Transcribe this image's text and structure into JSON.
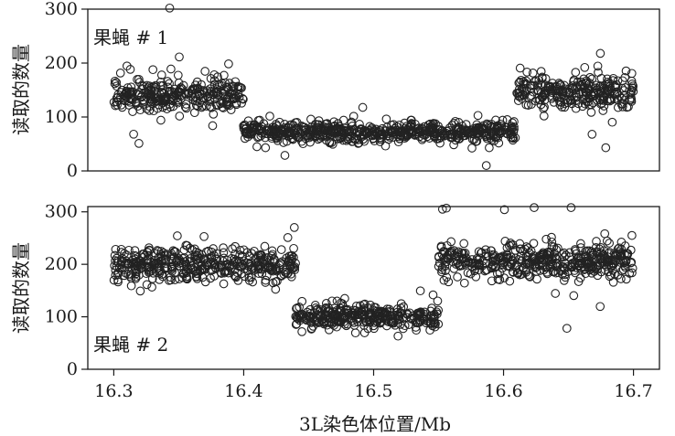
{
  "chart_data": [
    {
      "type": "scatter",
      "panel_label": "果蝇 # 1",
      "ylabel": "读取的数量",
      "ylim": [
        0,
        300
      ],
      "yticks": [
        0,
        100,
        200,
        300
      ],
      "xlim": [
        16.28,
        16.72
      ],
      "segments": [
        {
          "x_start": 16.3,
          "x_end": 16.4,
          "mean": 140,
          "spread": 28
        },
        {
          "x_start": 16.4,
          "x_end": 16.61,
          "mean": 72,
          "spread": 16
        },
        {
          "x_start": 16.61,
          "x_end": 16.7,
          "mean": 145,
          "spread": 28
        }
      ],
      "outliers": [
        {
          "x": 16.343,
          "y": 302
        }
      ],
      "series_color": "#222222"
    },
    {
      "type": "scatter",
      "panel_label": "果蝇 # 2",
      "ylabel": "读取的数量",
      "ylim": [
        0,
        310
      ],
      "yticks": [
        0,
        100,
        200,
        300
      ],
      "xlim": [
        16.28,
        16.72
      ],
      "segments": [
        {
          "x_start": 16.3,
          "x_end": 16.44,
          "mean": 200,
          "spread": 28
        },
        {
          "x_start": 16.44,
          "x_end": 16.55,
          "mean": 100,
          "spread": 20
        },
        {
          "x_start": 16.55,
          "x_end": 16.7,
          "mean": 205,
          "spread": 28
        }
      ],
      "outliers": [
        {
          "x": 16.553,
          "y": 305
        },
        {
          "x": 16.556,
          "y": 307
        }
      ],
      "series_color": "#222222"
    }
  ],
  "xaxis": {
    "xlabel": "3L染色体位置/Mb",
    "xticks": [
      16.3,
      16.4,
      16.5,
      16.6,
      16.7
    ]
  }
}
